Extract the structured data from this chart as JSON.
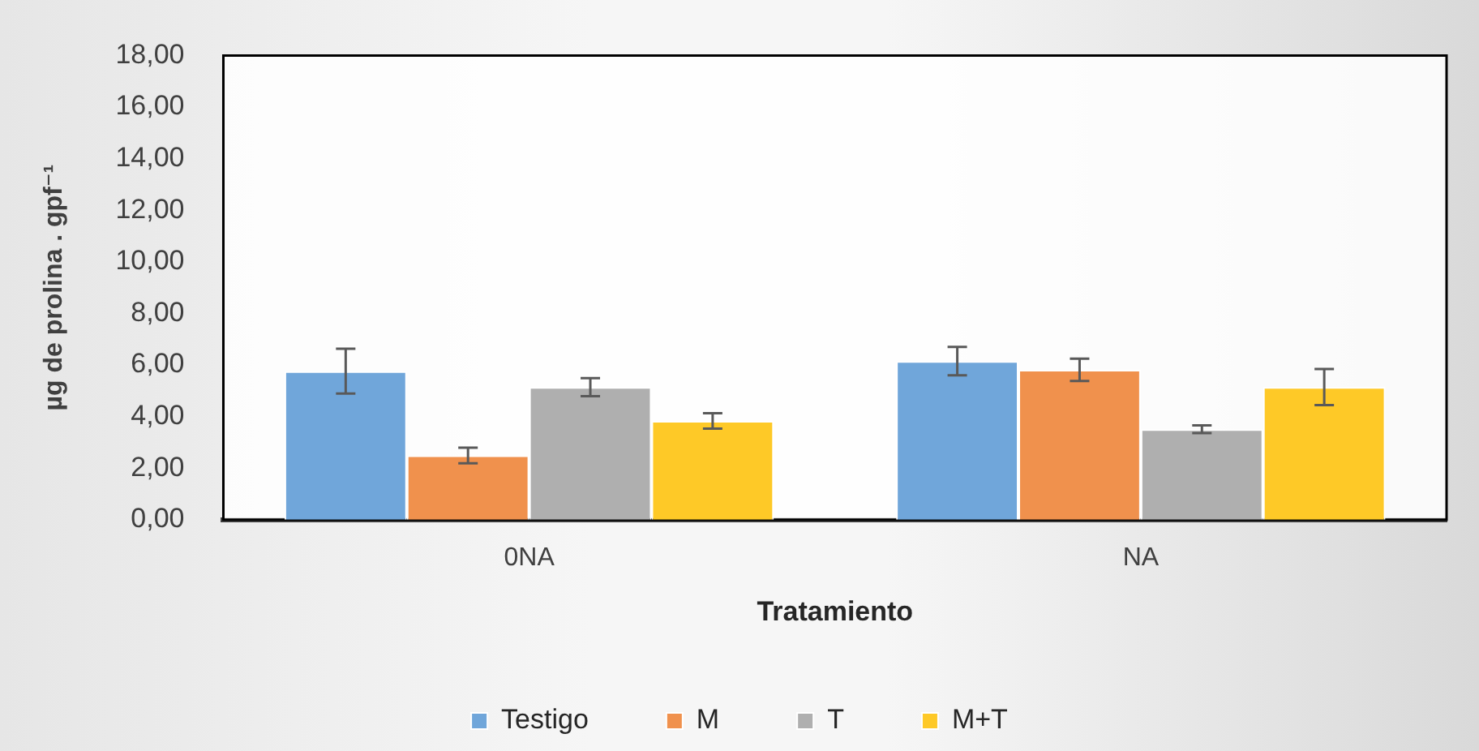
{
  "chart_data": {
    "type": "bar",
    "xlabel": "Tratamiento",
    "ylabel": "µg de prolina . gpf⁻¹",
    "categories": [
      "0NA",
      "NA"
    ],
    "series": [
      {
        "name": "Testigo",
        "color": "#70a6da",
        "values": [
          5.76,
          6.15
        ],
        "errors": [
          0.87,
          0.55
        ]
      },
      {
        "name": "M",
        "color": "#f0914d",
        "values": [
          2.49,
          5.81
        ],
        "errors": [
          0.3,
          0.43
        ]
      },
      {
        "name": "T",
        "color": "#afafaf",
        "values": [
          5.14,
          3.51
        ],
        "errors": [
          0.35,
          0.15
        ]
      },
      {
        "name": "M+T",
        "color": "#fec927",
        "values": [
          3.83,
          5.14
        ],
        "errors": [
          0.3,
          0.7
        ]
      }
    ],
    "ylim": [
      0,
      18
    ],
    "yticks": [
      {
        "value": 0,
        "label": "0,00"
      },
      {
        "value": 2,
        "label": "2,00"
      },
      {
        "value": 4,
        "label": "4,00"
      },
      {
        "value": 6,
        "label": "6,00"
      },
      {
        "value": 8,
        "label": "8,00"
      },
      {
        "value": 10,
        "label": "10,00"
      },
      {
        "value": 12,
        "label": "12,00"
      },
      {
        "value": 14,
        "label": "14,00"
      },
      {
        "value": 16,
        "label": "16,00"
      },
      {
        "value": 18,
        "label": "18,00"
      }
    ],
    "grid": false,
    "legend": "bottom"
  }
}
